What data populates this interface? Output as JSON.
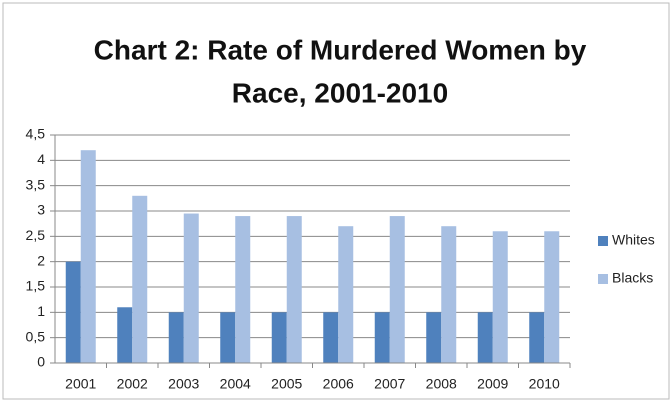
{
  "chart_data": {
    "type": "bar",
    "title": [
      "Chart 2:  Rate of Murdered Women by",
      "Race, 2001-2010"
    ],
    "categories": [
      "2001",
      "2002",
      "2003",
      "2004",
      "2005",
      "2006",
      "2007",
      "2008",
      "2009",
      "2010"
    ],
    "series": [
      {
        "name": "Whites",
        "color": "#4f81bd",
        "values": [
          2.0,
          1.1,
          1.0,
          1.0,
          1.0,
          1.0,
          1.0,
          1.0,
          1.0,
          1.0
        ]
      },
      {
        "name": "Blacks",
        "color": "#a7bfe2",
        "values": [
          4.2,
          3.3,
          2.95,
          2.9,
          2.9,
          2.7,
          2.9,
          2.7,
          2.6,
          2.6
        ]
      }
    ],
    "ylim": [
      0,
      4.5
    ],
    "yticks": [
      0,
      {
        "value": 0.5,
        "label": "0,5"
      },
      1,
      {
        "value": 1.5,
        "label": "1,5"
      },
      2,
      {
        "value": 2.5,
        "label": "2,5"
      },
      3,
      {
        "value": 3.5,
        "label": "3,5"
      },
      4,
      {
        "value": 4.5,
        "label": "4,5"
      }
    ],
    "grid": true,
    "legend": "right"
  }
}
